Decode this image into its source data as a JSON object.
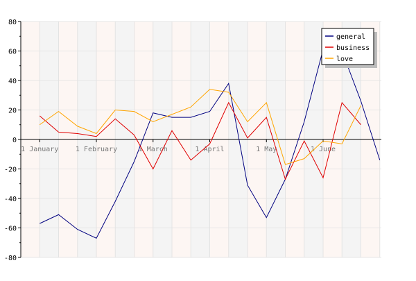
{
  "chart_data": {
    "type": "line",
    "ylim": [
      -80,
      80
    ],
    "y_ticks": [
      80,
      60,
      40,
      20,
      0,
      -20,
      -40,
      -60,
      -80
    ],
    "x_labels": [
      "1 January",
      "1 February",
      "1 March",
      "1 April",
      "1 May",
      "1 June"
    ],
    "x_label_positions": [
      1,
      4,
      7,
      10,
      13,
      16
    ],
    "x_count": 20,
    "grid": true,
    "legend_position": "top-right",
    "series": [
      {
        "name": "general",
        "color": "#000080",
        "values": [
          -57,
          -51,
          -61,
          -67,
          -42,
          -15,
          18,
          15,
          15,
          19,
          38,
          -31,
          -53,
          -27,
          12,
          61,
          60,
          26,
          -14
        ]
      },
      {
        "name": "business",
        "color": "#e00000",
        "values": [
          16,
          5,
          4,
          2,
          14,
          3,
          -20,
          6,
          -14,
          -3,
          25,
          1,
          15,
          -27,
          -1,
          -26,
          25,
          10
        ]
      },
      {
        "name": "love",
        "color": "#ffa500",
        "values": [
          10,
          19,
          9,
          4,
          20,
          19,
          12,
          17,
          22,
          34,
          32,
          12,
          25,
          -17,
          -13,
          -1,
          -3,
          23
        ]
      }
    ],
    "series_x_start": [
      1,
      1,
      1
    ]
  }
}
